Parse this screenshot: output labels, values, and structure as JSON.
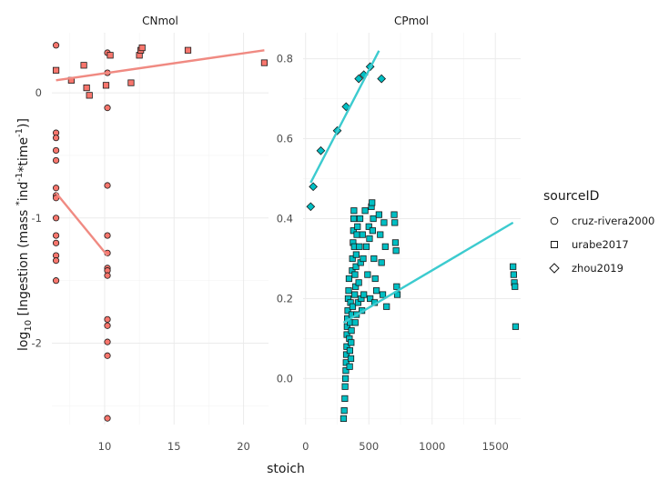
{
  "chart_data": {
    "type": "scatter",
    "xlabel": "stoich",
    "ylabel_parts": [
      "log",
      "10",
      " [Ingestion (mass ",
      "*",
      "ind",
      "-1",
      "*time",
      "-1",
      ")]"
    ],
    "legend": {
      "title": "sourceID",
      "entries": [
        {
          "label": "cruz-rivera2000",
          "shape": "circle"
        },
        {
          "label": "urabe2017",
          "shape": "square"
        },
        {
          "label": "zhou2019",
          "shape": "diamond"
        }
      ],
      "position": "right"
    },
    "colors": {
      "CNmol": "#F8766D",
      "CPmol": "#00BFC4",
      "CNmol_line": "#F08A82",
      "CPmol_line": "#3CCBCF",
      "outline": "#1a1a1a",
      "grid": "#EBEBEB"
    },
    "facets": [
      {
        "title": "CNmol",
        "xlim": [
          6.2,
          21.8
        ],
        "ylim": [
          -2.65,
          0.48
        ],
        "x_ticks": [
          10,
          15,
          20
        ],
        "x_tick_labels": [
          "10",
          "15",
          "20"
        ],
        "y_ticks": [
          -2,
          -1,
          0
        ],
        "y_tick_labels": [
          "-2",
          "-1",
          "0"
        ],
        "points": {
          "cruz-rivera2000": [
            [
              6.5,
              0.38
            ],
            [
              6.5,
              -0.32
            ],
            [
              6.5,
              -0.36
            ],
            [
              6.5,
              -0.46
            ],
            [
              6.5,
              -0.54
            ],
            [
              6.5,
              -0.76
            ],
            [
              6.5,
              -0.82
            ],
            [
              6.5,
              -0.84
            ],
            [
              6.5,
              -1.0
            ],
            [
              6.5,
              -1.14
            ],
            [
              6.5,
              -1.2
            ],
            [
              6.5,
              -1.3
            ],
            [
              6.5,
              -1.34
            ],
            [
              6.5,
              -1.5
            ],
            [
              10.2,
              0.32
            ],
            [
              10.2,
              0.16
            ],
            [
              10.2,
              -0.12
            ],
            [
              10.2,
              -0.74
            ],
            [
              10.2,
              -1.14
            ],
            [
              10.2,
              -1.28
            ],
            [
              10.2,
              -1.4
            ],
            [
              10.2,
              -1.42
            ],
            [
              10.2,
              -1.46
            ],
            [
              10.2,
              -1.81
            ],
            [
              10.2,
              -1.86
            ],
            [
              10.2,
              -1.99
            ],
            [
              10.2,
              -2.1
            ],
            [
              10.2,
              -2.6
            ]
          ],
          "urabe2017": [
            [
              6.5,
              0.18
            ],
            [
              7.6,
              0.1
            ],
            [
              8.5,
              0.22
            ],
            [
              8.7,
              0.04
            ],
            [
              8.9,
              -0.02
            ],
            [
              10.1,
              0.06
            ],
            [
              10.4,
              0.3
            ],
            [
              11.9,
              0.08
            ],
            [
              12.5,
              0.3
            ],
            [
              12.6,
              0.34
            ],
            [
              12.7,
              0.36
            ],
            [
              16.0,
              0.34
            ],
            [
              21.5,
              0.24
            ]
          ],
          "zhou2019": []
        },
        "fit_lines": [
          {
            "source": "urabe2017",
            "from": [
              6.5,
              0.1
            ],
            "to": [
              21.5,
              0.34
            ]
          },
          {
            "source": "cruz-rivera2000",
            "from": [
              6.5,
              -0.8
            ],
            "to": [
              10.2,
              -1.3
            ]
          }
        ]
      },
      {
        "title": "CPmol",
        "xlim": [
          -20,
          1700
        ],
        "ylim": [
          -0.115,
          0.865
        ],
        "x_ticks": [
          0,
          500,
          1000,
          1500
        ],
        "x_tick_labels": [
          "0",
          "500",
          "1000",
          "1500"
        ],
        "y_ticks": [
          0.0,
          0.2,
          0.4,
          0.6,
          0.8
        ],
        "y_tick_labels": [
          "0.0",
          "0.2",
          "0.4",
          "0.6",
          "0.8"
        ],
        "points": {
          "cruz-rivera2000": [],
          "urabe2017": [
            [
              300,
              -0.1
            ],
            [
              305,
              -0.08
            ],
            [
              310,
              -0.05
            ],
            [
              312,
              -0.02
            ],
            [
              315,
              0.0
            ],
            [
              318,
              0.02
            ],
            [
              320,
              0.04
            ],
            [
              322,
              0.06
            ],
            [
              325,
              0.08
            ],
            [
              326,
              0.11
            ],
            [
              328,
              0.13
            ],
            [
              330,
              0.15
            ],
            [
              333,
              0.17
            ],
            [
              336,
              0.2
            ],
            [
              340,
              0.22
            ],
            [
              343,
              0.25
            ],
            [
              346,
              0.1
            ],
            [
              348,
              0.03
            ],
            [
              350,
              0.07
            ],
            [
              352,
              0.14
            ],
            [
              355,
              0.19
            ],
            [
              358,
              0.05
            ],
            [
              360,
              0.09
            ],
            [
              362,
              0.12
            ],
            [
              365,
              0.16
            ],
            [
              368,
              0.27
            ],
            [
              370,
              0.3
            ],
            [
              372,
              0.18
            ],
            [
              375,
              0.34
            ],
            [
              378,
              0.37
            ],
            [
              380,
              0.4
            ],
            [
              382,
              0.42
            ],
            [
              385,
              0.33
            ],
            [
              388,
              0.21
            ],
            [
              390,
              0.26
            ],
            [
              392,
              0.14
            ],
            [
              395,
              0.23
            ],
            [
              398,
              0.28
            ],
            [
              400,
              0.31
            ],
            [
              402,
              0.16
            ],
            [
              405,
              0.36
            ],
            [
              410,
              0.38
            ],
            [
              415,
              0.19
            ],
            [
              420,
              0.24
            ],
            [
              425,
              0.33
            ],
            [
              430,
              0.4
            ],
            [
              435,
              0.29
            ],
            [
              440,
              0.2
            ],
            [
              445,
              0.17
            ],
            [
              450,
              0.36
            ],
            [
              455,
              0.3
            ],
            [
              460,
              0.21
            ],
            [
              470,
              0.42
            ],
            [
              480,
              0.33
            ],
            [
              490,
              0.26
            ],
            [
              500,
              0.38
            ],
            [
              505,
              0.35
            ],
            [
              510,
              0.2
            ],
            [
              520,
              0.43
            ],
            [
              525,
              0.44
            ],
            [
              530,
              0.37
            ],
            [
              535,
              0.4
            ],
            [
              540,
              0.3
            ],
            [
              545,
              0.19
            ],
            [
              550,
              0.25
            ],
            [
              560,
              0.22
            ],
            [
              580,
              0.41
            ],
            [
              590,
              0.36
            ],
            [
              600,
              0.29
            ],
            [
              610,
              0.21
            ],
            [
              620,
              0.39
            ],
            [
              630,
              0.33
            ],
            [
              640,
              0.18
            ],
            [
              700,
              0.41
            ],
            [
              705,
              0.39
            ],
            [
              710,
              0.34
            ],
            [
              715,
              0.32
            ],
            [
              720,
              0.23
            ],
            [
              725,
              0.21
            ],
            [
              1640,
              0.28
            ],
            [
              1645,
              0.26
            ],
            [
              1650,
              0.24
            ],
            [
              1655,
              0.23
            ],
            [
              1660,
              0.13
            ]
          ],
          "zhou2019": [
            [
              40,
              0.43
            ],
            [
              60,
              0.48
            ],
            [
              120,
              0.57
            ],
            [
              250,
              0.62
            ],
            [
              320,
              0.68
            ],
            [
              420,
              0.75
            ],
            [
              460,
              0.76
            ],
            [
              510,
              0.78
            ],
            [
              600,
              0.75
            ]
          ]
        },
        "fit_lines": [
          {
            "source": "urabe2017",
            "from": [
              300,
              0.14
            ],
            "to": [
              1640,
              0.39
            ]
          },
          {
            "source": "zhou2019",
            "from": [
              40,
              0.49
            ],
            "to": [
              580,
              0.82
            ]
          }
        ]
      }
    ]
  }
}
